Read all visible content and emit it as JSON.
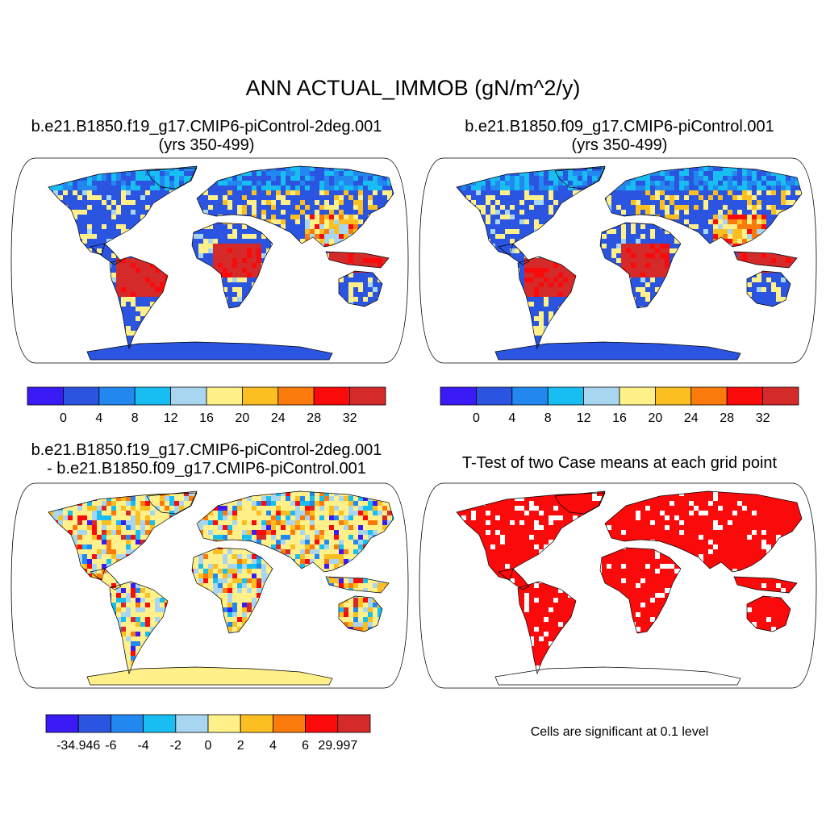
{
  "title": "ANN ACTUAL_IMMOB (gN/m^2/y)",
  "panels": [
    {
      "title_line1": "b.e21.B1850.f19_g17.CMIP6-piControl-2deg.001",
      "title_line2": "(yrs 350-499)",
      "colorbar": {
        "colors": [
          "#3a1af5",
          "#2b55e0",
          "#2288f0",
          "#18bdf2",
          "#a8d6f0",
          "#fff08a",
          "#fbbf22",
          "#fb7a0c",
          "#fa0a0a",
          "#d42a2a"
        ],
        "labels": [
          "0",
          "4",
          "8",
          "12",
          "16",
          "20",
          "24",
          "28",
          "32"
        ]
      }
    },
    {
      "title_line1": "b.e21.B1850.f09_g17.CMIP6-piControl.001",
      "title_line2": "(yrs 350-499)",
      "colorbar": {
        "colors": [
          "#3a1af5",
          "#2b55e0",
          "#2288f0",
          "#18bdf2",
          "#a8d6f0",
          "#fff08a",
          "#fbbf22",
          "#fb7a0c",
          "#fa0a0a",
          "#d42a2a"
        ],
        "labels": [
          "0",
          "4",
          "8",
          "12",
          "16",
          "20",
          "24",
          "28",
          "32"
        ]
      }
    },
    {
      "title_line1": "b.e21.B1850.f19_g17.CMIP6-piControl-2deg.001",
      "title_line2": "- b.e21.B1850.f09_g17.CMIP6-piControl.001",
      "colorbar": {
        "colors": [
          "#3a1af5",
          "#2b55e0",
          "#2288f0",
          "#18bdf2",
          "#a8d6f0",
          "#fff08a",
          "#fbbf22",
          "#fb7a0c",
          "#fa0a0a",
          "#d42a2a"
        ],
        "labels": [
          "-34.946",
          "-6",
          "-4",
          "-2",
          "0",
          "2",
          "4",
          "6",
          "29.997"
        ]
      }
    },
    {
      "title_line1": "T-Test of two Case means at each grid point",
      "note": "Cells are significant at 0.1 level"
    }
  ]
}
